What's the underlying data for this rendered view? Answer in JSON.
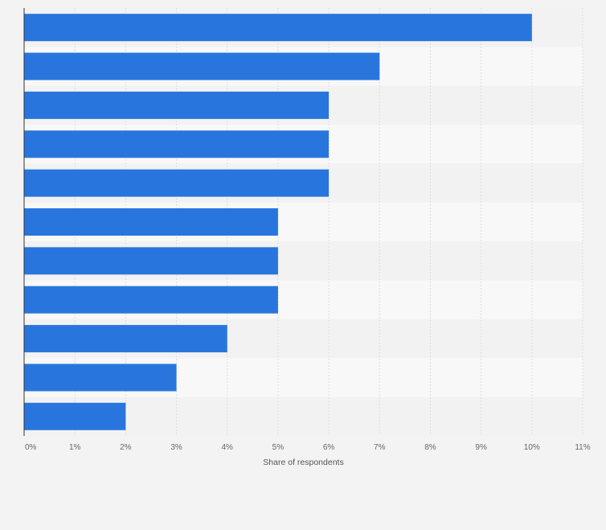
{
  "chart_data": {
    "type": "bar",
    "orientation": "horizontal",
    "categories": [
      "",
      "",
      "",
      "",
      "",
      "",
      "",
      "",
      "",
      "",
      ""
    ],
    "values": [
      10,
      7,
      6,
      6,
      6,
      5,
      5,
      5,
      4,
      3,
      2
    ],
    "unit": "%",
    "xlabel": "Share of respondents",
    "ylabel": "",
    "title": "",
    "xlim": [
      0,
      11
    ],
    "xticks": [
      "0%",
      "1%",
      "2%",
      "3%",
      "4%",
      "5%",
      "6%",
      "7%",
      "8%",
      "9%",
      "10%",
      "11%"
    ],
    "grid": true,
    "legend": "none"
  },
  "colors": {
    "bar": "#2876dd",
    "background": "#f3f3f3",
    "band_light": "#f8f8f8",
    "band_dark": "#f2f2f2",
    "gridline": "#dddddd",
    "axis": "#333333"
  }
}
